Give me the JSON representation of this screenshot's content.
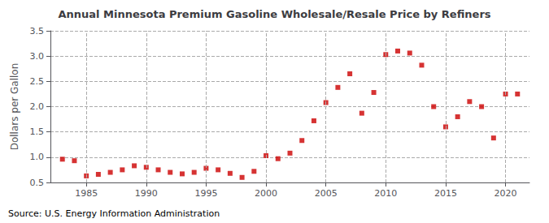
{
  "chart_data": {
    "type": "scatter",
    "title": "Annual Minnesota Premium Gasoline Wholesale/Resale Price by Refiners",
    "ylabel": "Dollars per Gallon",
    "annotation": "Source: U.S. Energy Information Administration",
    "x": [
      1983,
      1984,
      1985,
      1986,
      1987,
      1988,
      1989,
      1990,
      1991,
      1992,
      1993,
      1994,
      1995,
      1996,
      1997,
      1998,
      1999,
      2000,
      2001,
      2002,
      2003,
      2004,
      2005,
      2006,
      2007,
      2008,
      2009,
      2010,
      2011,
      2012,
      2013,
      2014,
      2015,
      2016,
      2017,
      2018,
      2019,
      2020,
      2021
    ],
    "values": [
      0.96,
      0.93,
      0.63,
      0.66,
      0.7,
      0.75,
      0.83,
      0.8,
      0.75,
      0.7,
      0.67,
      0.7,
      0.78,
      0.75,
      0.68,
      0.6,
      0.72,
      1.03,
      0.97,
      1.08,
      1.33,
      1.72,
      2.08,
      2.38,
      2.65,
      1.87,
      2.28,
      3.03,
      3.1,
      3.06,
      2.82,
      2.0,
      1.6,
      1.8,
      2.1,
      2.0,
      1.38,
      2.25,
      2.25
    ],
    "color": "#cc0000",
    "marker": "square",
    "xlim": [
      1982,
      2022
    ],
    "xticks": [
      1985,
      1990,
      1995,
      2000,
      2005,
      2010,
      2015,
      2020
    ],
    "ylim": [
      0.5,
      3.5
    ],
    "yticks": [
      0.5,
      {
        "value": 1,
        "label": "1.0"
      },
      1.5,
      {
        "value": 2,
        "label": "2.0"
      },
      2.5,
      {
        "value": 3,
        "label": "3.0"
      },
      3.5
    ],
    "grid": true
  }
}
